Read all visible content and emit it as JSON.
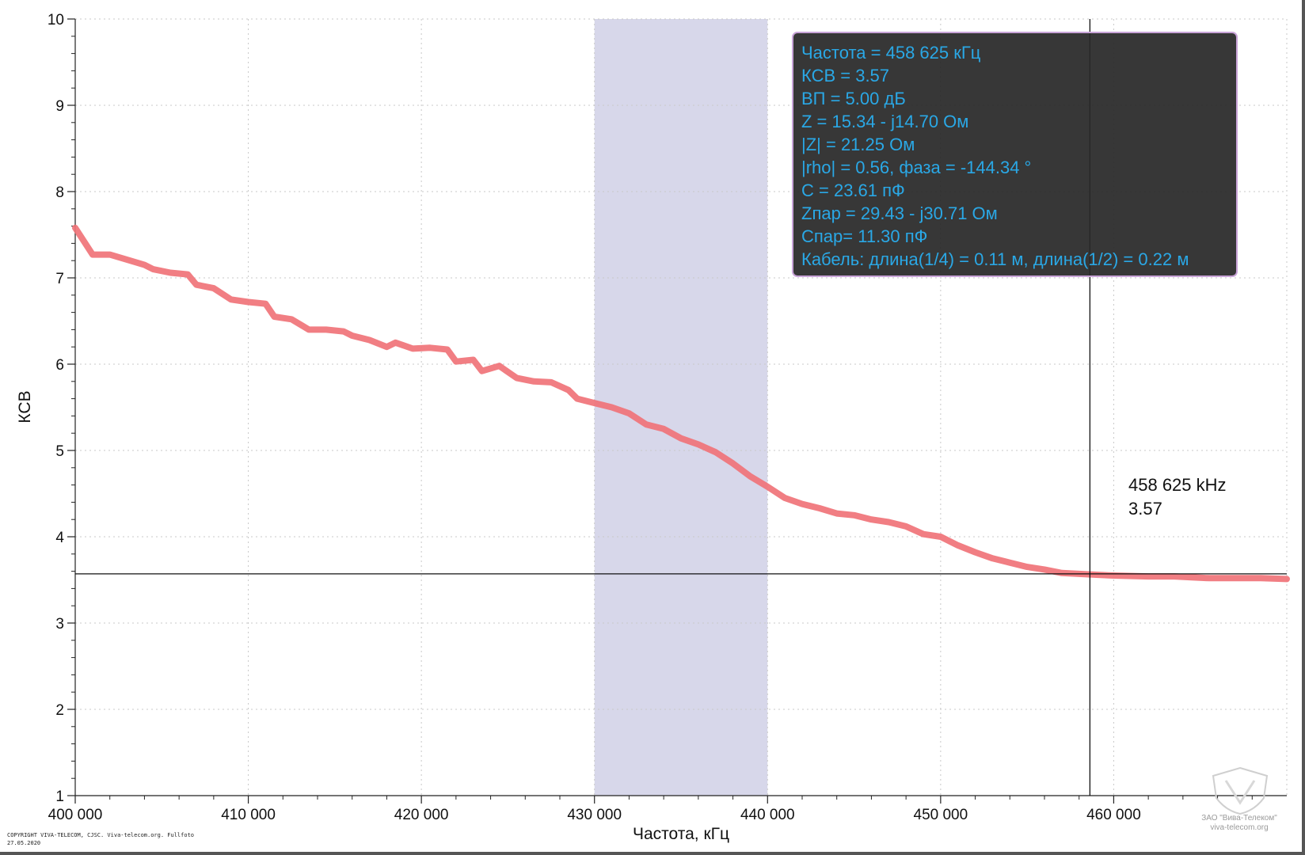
{
  "chart_data": {
    "type": "line",
    "xlabel": "Частота, кГц",
    "ylabel": "КСВ",
    "xlim": [
      400000,
      470000
    ],
    "ylim": [
      1,
      10
    ],
    "x_ticks": [
      400000,
      410000,
      420000,
      430000,
      440000,
      450000,
      460000
    ],
    "x_tick_labels": [
      "400 000",
      "410 000",
      "420 000",
      "430 000",
      "440 000",
      "450 000",
      "460 000"
    ],
    "y_ticks": [
      1,
      2,
      3,
      4,
      5,
      6,
      7,
      8,
      9,
      10
    ],
    "y_tick_labels": [
      "1",
      "2",
      "3",
      "4",
      "5",
      "6",
      "7",
      "8",
      "9",
      "10"
    ],
    "grid": true,
    "highlight_band": [
      430000,
      440000
    ],
    "cursor": {
      "x": 458625,
      "y": 3.57,
      "label_freq": "458 625 kHz",
      "label_value": "3.57"
    },
    "series": [
      {
        "color": "#f07378",
        "x": [
          400000,
          401000,
          402000,
          403000,
          404000,
          404500,
          405500,
          406500,
          407000,
          408000,
          409000,
          410000,
          411000,
          411500,
          412500,
          413500,
          414500,
          415500,
          416000,
          417000,
          418000,
          418500,
          419500,
          420500,
          421500,
          422000,
          423000,
          423500,
          424500,
          425500,
          426500,
          427500,
          428500,
          429000,
          430000,
          431000,
          432000,
          433000,
          434000,
          435000,
          436000,
          437000,
          438000,
          439000,
          440000,
          441000,
          442000,
          443000,
          444000,
          445000,
          446000,
          447000,
          448000,
          449000,
          450000,
          451000,
          452000,
          453000,
          454000,
          455000,
          456000,
          457000,
          458000,
          459000,
          460000,
          462000,
          463500,
          464500,
          465500,
          467000,
          468500,
          470000
        ],
        "values": [
          7.58,
          7.27,
          7.27,
          7.21,
          7.15,
          7.1,
          7.06,
          7.04,
          6.92,
          6.88,
          6.75,
          6.72,
          6.7,
          6.55,
          6.52,
          6.4,
          6.4,
          6.38,
          6.33,
          6.28,
          6.2,
          6.25,
          6.18,
          6.19,
          6.17,
          6.03,
          6.05,
          5.92,
          5.98,
          5.84,
          5.8,
          5.79,
          5.7,
          5.6,
          5.55,
          5.5,
          5.43,
          5.3,
          5.25,
          5.14,
          5.07,
          4.98,
          4.85,
          4.7,
          4.58,
          4.45,
          4.38,
          4.33,
          4.27,
          4.25,
          4.2,
          4.17,
          4.12,
          4.03,
          4.0,
          3.9,
          3.82,
          3.75,
          3.7,
          3.65,
          3.62,
          3.58,
          3.57,
          3.56,
          3.55,
          3.54,
          3.54,
          3.53,
          3.52,
          3.52,
          3.52,
          3.51
        ]
      }
    ]
  },
  "info_panel": {
    "lines": [
      "Частота = 458 625 кГц",
      "КСВ = 3.57",
      "ВП = 5.00 дБ",
      "Z = 15.34 - j14.70 Ом",
      "|Z| = 21.25 Ом",
      "|rho| = 0.56, фаза = -144.34 °",
      "C = 23.61 пФ",
      "Zпар = 29.43 - j30.71 Ом",
      "Cпар= 11.30 пФ",
      "Кабель: длина(1/4) = 0.11 м, длина(1/2) = 0.22 м"
    ],
    "text_color": "#2aa8e6",
    "background": "#282828"
  },
  "footer": {
    "copyright_line1": "COPYRIGHT VIVA-TELECOM, CJSC. Viva-telecom.org. Fullfoto",
    "copyright_line2": "27.05.2020",
    "watermark_line1": "ЗАО \"Вива-Телеком\"",
    "watermark_line2": "viva-telecom.org"
  }
}
